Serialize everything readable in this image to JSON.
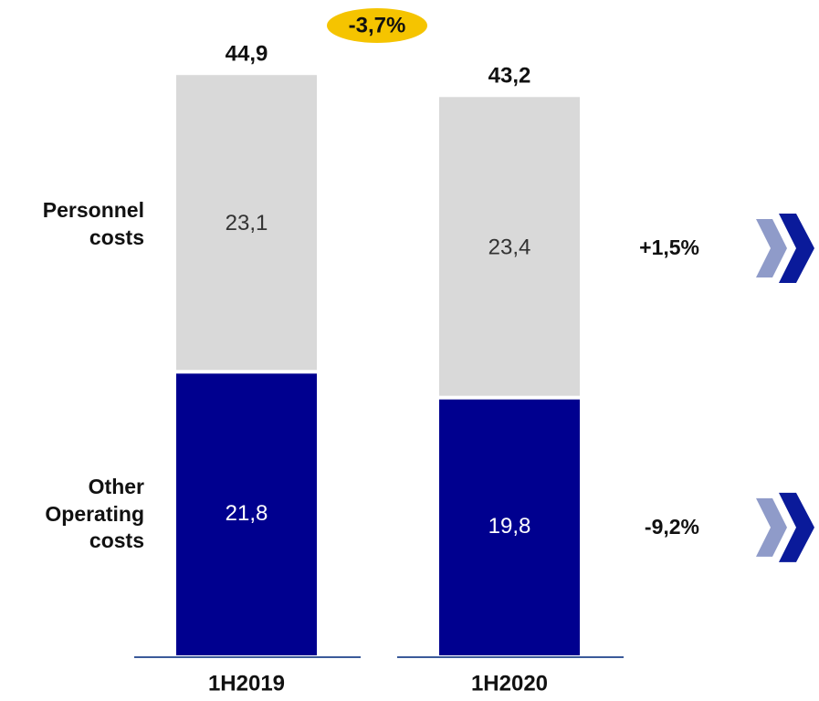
{
  "chart_data": {
    "type": "bar",
    "stacked": true,
    "categories": [
      "1H2019",
      "1H2020"
    ],
    "series": [
      {
        "name": "Other Operating costs",
        "color": "#00008f",
        "values": [
          21.8,
          19.8
        ],
        "value_labels": [
          "21,8",
          "19,8"
        ],
        "change": {
          "value": -9.2,
          "label": "-9,2%"
        }
      },
      {
        "name": "Personnel costs",
        "color": "#d9d9d9",
        "values": [
          23.1,
          23.4
        ],
        "value_labels": [
          "23,1",
          "23,4"
        ],
        "change": {
          "value": 1.5,
          "label": "+1,5%"
        }
      }
    ],
    "totals": [
      44.9,
      43.2
    ],
    "total_labels": [
      "44,9",
      "43,2"
    ],
    "total_change": {
      "value": -3.7,
      "label": "-3,7%"
    },
    "ylim": [
      0,
      50
    ]
  }
}
